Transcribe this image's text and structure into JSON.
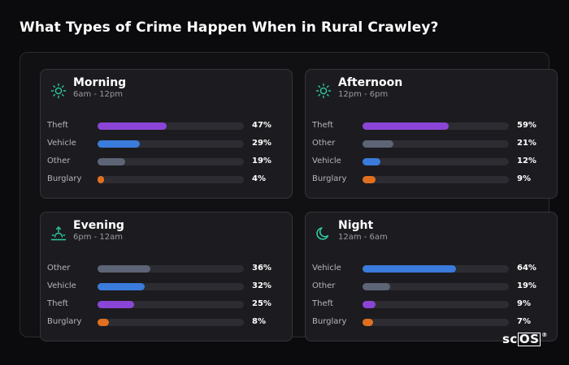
{
  "title": "What Types of Crime Happen When in Rural Crawley?",
  "logo": {
    "prefix": "sc",
    "boxed": "OS",
    "mark": "®"
  },
  "colors": {
    "theft": "#8b45d6",
    "vehicle": "#3a7bdb",
    "other": "#5d6475",
    "burglary": "#e0701f",
    "icon": "#2fc9a0"
  },
  "cards": [
    {
      "name": "Morning",
      "time": "6am - 12pm",
      "icon": "sun-icon",
      "rows": [
        {
          "label": "Theft",
          "value": 47,
          "value_text": "47%",
          "category": "theft"
        },
        {
          "label": "Vehicle",
          "value": 29,
          "value_text": "29%",
          "category": "vehicle"
        },
        {
          "label": "Other",
          "value": 19,
          "value_text": "19%",
          "category": "other"
        },
        {
          "label": "Burglary",
          "value": 4,
          "value_text": "4%",
          "category": "burglary"
        }
      ]
    },
    {
      "name": "Afternoon",
      "time": "12pm - 6pm",
      "icon": "sun-icon",
      "rows": [
        {
          "label": "Theft",
          "value": 59,
          "value_text": "59%",
          "category": "theft"
        },
        {
          "label": "Other",
          "value": 21,
          "value_text": "21%",
          "category": "other"
        },
        {
          "label": "Vehicle",
          "value": 12,
          "value_text": "12%",
          "category": "vehicle"
        },
        {
          "label": "Burglary",
          "value": 9,
          "value_text": "9%",
          "category": "burglary"
        }
      ]
    },
    {
      "name": "Evening",
      "time": "6pm - 12am",
      "icon": "sunset-icon",
      "rows": [
        {
          "label": "Other",
          "value": 36,
          "value_text": "36%",
          "category": "other"
        },
        {
          "label": "Vehicle",
          "value": 32,
          "value_text": "32%",
          "category": "vehicle"
        },
        {
          "label": "Theft",
          "value": 25,
          "value_text": "25%",
          "category": "theft"
        },
        {
          "label": "Burglary",
          "value": 8,
          "value_text": "8%",
          "category": "burglary"
        }
      ]
    },
    {
      "name": "Night",
      "time": "12am - 6am",
      "icon": "moon-icon",
      "rows": [
        {
          "label": "Vehicle",
          "value": 64,
          "value_text": "64%",
          "category": "vehicle"
        },
        {
          "label": "Other",
          "value": 19,
          "value_text": "19%",
          "category": "other"
        },
        {
          "label": "Theft",
          "value": 9,
          "value_text": "9%",
          "category": "theft"
        },
        {
          "label": "Burglary",
          "value": 7,
          "value_text": "7%",
          "category": "burglary"
        }
      ]
    }
  ]
}
